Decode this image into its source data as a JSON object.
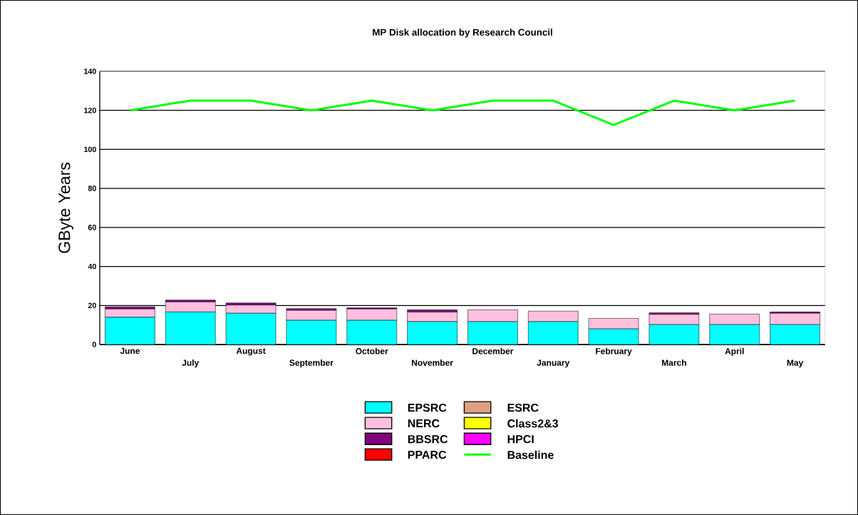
{
  "chart_data": {
    "type": "bar",
    "title": "MP Disk allocation by Research Council",
    "ylabel": "GByte Years",
    "categories": [
      "June",
      "July",
      "August",
      "September",
      "October",
      "November",
      "December",
      "January",
      "February",
      "March",
      "April",
      "May"
    ],
    "stacked": true,
    "grid": "y",
    "legend": "bottom",
    "ylim": [
      0,
      140
    ],
    "yticks": [
      0,
      20,
      40,
      60,
      80,
      100,
      120,
      140
    ],
    "series": [
      {
        "name": "EPSRC",
        "color": "#00ffff",
        "values": [
          14.0,
          16.7,
          16.0,
          12.4,
          12.4,
          11.7,
          11.7,
          11.7,
          8.0,
          10.2,
          10.2,
          10.2
        ]
      },
      {
        "name": "NERC",
        "color": "#ffc0e0",
        "values": [
          4.2,
          5.1,
          4.2,
          5.1,
          5.8,
          4.9,
          6.1,
          5.4,
          5.4,
          5.2,
          5.4,
          5.8
        ]
      },
      {
        "name": "BBSRC",
        "color": "#800080",
        "values": [
          1.1,
          1.0,
          1.1,
          0.9,
          0.6,
          1.2,
          null,
          null,
          null,
          0.9,
          null,
          0.7
        ]
      },
      {
        "name": "PPARC",
        "color": "#ff0000",
        "values": [
          null,
          null,
          null,
          null,
          null,
          null,
          null,
          null,
          null,
          null,
          null,
          null
        ]
      },
      {
        "name": "ESRC",
        "color": "#e0a080",
        "values": [
          null,
          null,
          null,
          null,
          null,
          null,
          null,
          null,
          null,
          null,
          null,
          null
        ]
      },
      {
        "name": "Class2&3",
        "color": "#ffff00",
        "values": [
          null,
          null,
          null,
          null,
          null,
          null,
          null,
          null,
          null,
          null,
          null,
          null
        ]
      },
      {
        "name": "HPCI",
        "color": "#ff00ff",
        "values": [
          null,
          null,
          null,
          null,
          null,
          null,
          null,
          null,
          null,
          null,
          null,
          null
        ]
      },
      {
        "name": "Baseline",
        "type": "line",
        "color": "#00ff00",
        "values": [
          120,
          125,
          125,
          120,
          125,
          120,
          125,
          125,
          112.5,
          125,
          120,
          125
        ]
      }
    ]
  }
}
